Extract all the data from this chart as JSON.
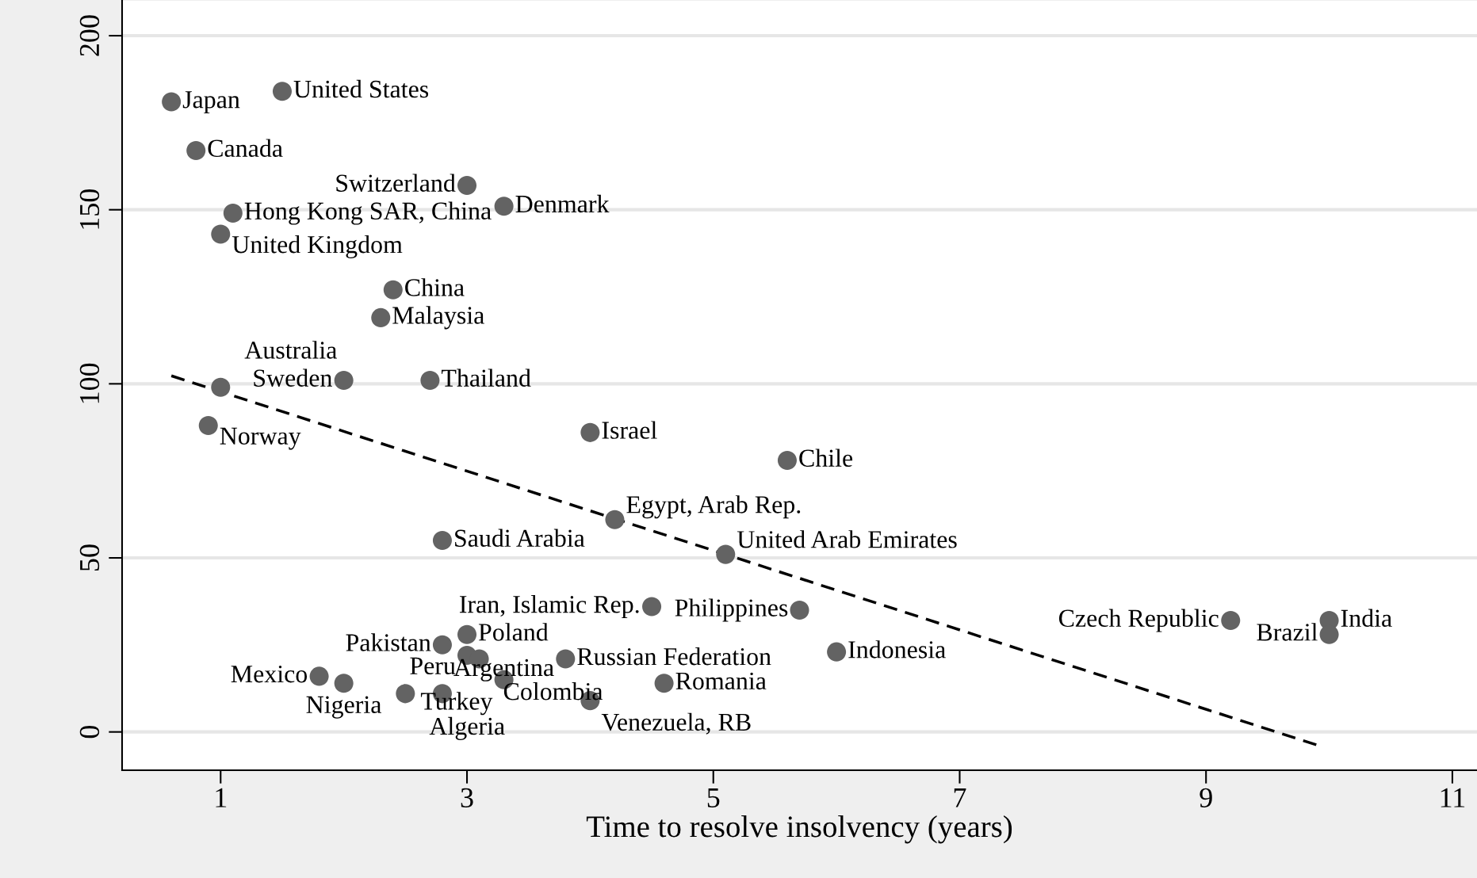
{
  "chart_data": {
    "type": "scatter",
    "xlabel": "Time to resolve insolvency (years)",
    "xlim": [
      0.2,
      11.2
    ],
    "xticks": [
      1,
      3,
      5,
      7,
      9,
      11
    ],
    "ylim": [
      -11,
      210
    ],
    "yticks": [
      0,
      50,
      100,
      150,
      200
    ],
    "grid": "y",
    "legend": false,
    "marker": "circle",
    "series": [
      {
        "color": "#636363",
        "x": [
          0.6,
          1.5,
          0.8,
          3.0,
          3.3,
          1.1,
          1.0,
          2.4,
          2.3,
          2.0,
          2.7,
          1.0,
          0.9,
          4.0,
          5.6,
          4.2,
          2.8,
          5.1,
          4.5,
          5.7,
          6.0,
          9.2,
          10.0,
          10.0,
          3.0,
          2.8,
          3.0,
          3.1,
          3.8,
          1.8,
          2.0,
          3.3,
          4.6,
          2.5,
          2.8,
          4.0
        ],
        "values": [
          181,
          184,
          167,
          157,
          151,
          149,
          143,
          127,
          119,
          101,
          101,
          99,
          88,
          86,
          78,
          61,
          55,
          51,
          36,
          35,
          23,
          32,
          32,
          28,
          28,
          25,
          22,
          21,
          21,
          16,
          14,
          15,
          14,
          11,
          11,
          9
        ]
      },
      {
        "type": "line",
        "color": "#000000",
        "line_style": "dashed",
        "marker": "none",
        "x": [
          0.6,
          9.93
        ],
        "values": [
          102.3,
          -4.1
        ]
      }
    ],
    "annotations": [
      {
        "text": "Japan",
        "x": 0.6,
        "y": 181
      },
      {
        "text": "United States",
        "x": 1.5,
        "y": 184
      },
      {
        "text": "Canada",
        "x": 0.8,
        "y": 167
      },
      {
        "text": "Switzerland",
        "x": 3.0,
        "y": 157
      },
      {
        "text": "Denmark",
        "x": 3.3,
        "y": 151
      },
      {
        "text": "Hong Kong SAR, China",
        "x": 1.1,
        "y": 149
      },
      {
        "text": "United Kingdom",
        "x": 1.0,
        "y": 143
      },
      {
        "text": "China",
        "x": 2.4,
        "y": 127
      },
      {
        "text": "Malaysia",
        "x": 2.3,
        "y": 119
      },
      {
        "text": "Sweden",
        "x": 2.0,
        "y": 101
      },
      {
        "text": "Thailand",
        "x": 2.7,
        "y": 101
      },
      {
        "text": "Australia",
        "x": 1.0,
        "y": 99
      },
      {
        "text": "Norway",
        "x": 0.9,
        "y": 88
      },
      {
        "text": "Israel",
        "x": 4.0,
        "y": 86
      },
      {
        "text": "Chile",
        "x": 5.6,
        "y": 78
      },
      {
        "text": "Egypt, Arab Rep.",
        "x": 4.2,
        "y": 61
      },
      {
        "text": "Saudi Arabia",
        "x": 2.8,
        "y": 55
      },
      {
        "text": "United Arab Emirates",
        "x": 5.1,
        "y": 51
      },
      {
        "text": "Iran, Islamic Rep.",
        "x": 4.5,
        "y": 36
      },
      {
        "text": "Philippines",
        "x": 5.7,
        "y": 35
      },
      {
        "text": "Indonesia",
        "x": 6.0,
        "y": 23
      },
      {
        "text": "Czech Republic",
        "x": 9.2,
        "y": 32
      },
      {
        "text": "India",
        "x": 10.0,
        "y": 32
      },
      {
        "text": "Brazil",
        "x": 10.0,
        "y": 28
      },
      {
        "text": "Poland",
        "x": 3.0,
        "y": 28
      },
      {
        "text": "Pakistan",
        "x": 2.8,
        "y": 25
      },
      {
        "text": "Peru",
        "x": 3.0,
        "y": 22
      },
      {
        "text": "Colombia",
        "x": 3.1,
        "y": 21
      },
      {
        "text": "Russian Federation",
        "x": 3.8,
        "y": 21
      },
      {
        "text": "Mexico",
        "x": 1.8,
        "y": 16
      },
      {
        "text": "Nigeria",
        "x": 2.0,
        "y": 14
      },
      {
        "text": "Turkey",
        "x": 3.3,
        "y": 15
      },
      {
        "text": "Romania",
        "x": 4.6,
        "y": 14
      },
      {
        "text": "Algeria",
        "x": 2.5,
        "y": 11
      },
      {
        "text": "Argentina",
        "x": 2.8,
        "y": 11
      },
      {
        "text": "Venezuela, RB",
        "x": 4.0,
        "y": 9
      }
    ]
  }
}
